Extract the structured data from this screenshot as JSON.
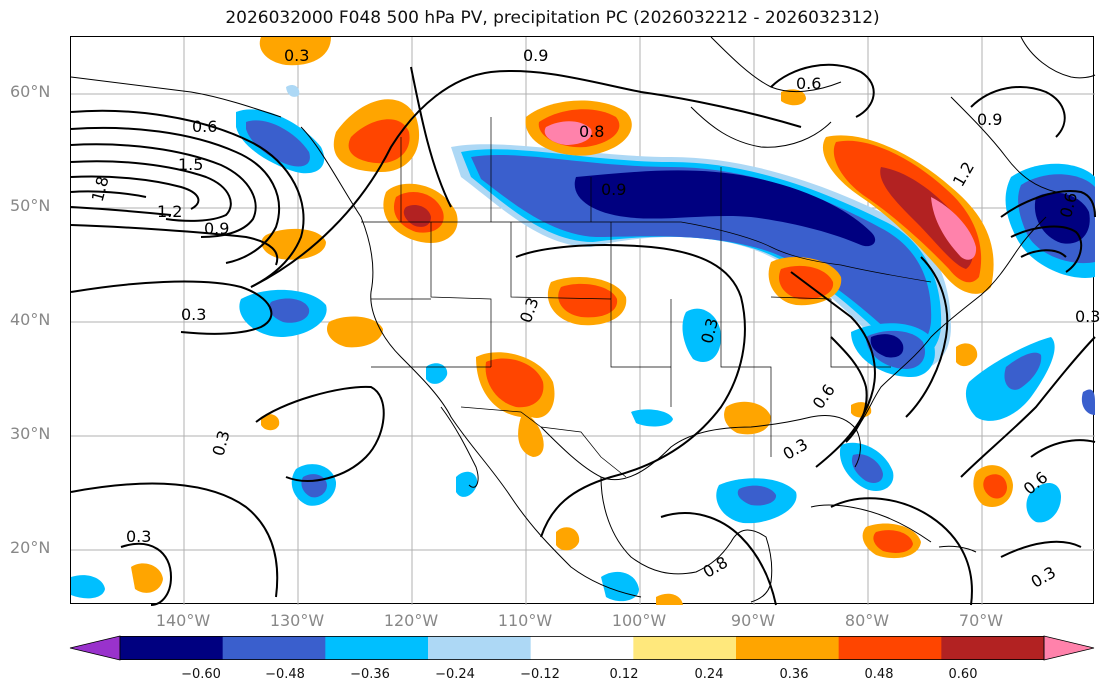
{
  "title": "2026032000 F048 500 hPa PV, precipitation PC (2026032212 - 2026032312)",
  "lat_labels": [
    "60°N",
    "50°N",
    "40°N",
    "30°N",
    "20°N"
  ],
  "lon_labels": [
    "140°W",
    "130°W",
    "120°W",
    "110°W",
    "100°W",
    "90°W",
    "80°W",
    "70°W"
  ],
  "colorbar": {
    "labels": [
      "−0.60",
      "−0.48",
      "−0.36",
      "−0.24",
      "−0.12",
      "0.12",
      "0.24",
      "0.36",
      "0.48",
      "0.60"
    ],
    "colors": [
      "#9932cc",
      "#000080",
      "#3a5fcd",
      "#00bfff",
      "#add8f5",
      "#ffffff",
      "#ffe87c",
      "#ffa500",
      "#ff4500",
      "#b22222",
      "#ff82ab"
    ]
  },
  "contour_labels": [
    "0.3",
    "0.9",
    "0.6",
    "0.6",
    "1.5",
    "1.8",
    "1.2",
    "0.9",
    "0.3",
    "0.3",
    "0.3",
    "0.3",
    "0.6",
    "0.3",
    "0.6",
    "0.9",
    "0.9",
    "1.2",
    "0.3",
    "0.6",
    "0.3",
    "0.3",
    "0.8",
    "0.8"
  ],
  "colors": {
    "grid": "#b0b0b0",
    "coast": "#000000",
    "contour": "#000000",
    "tick_label": "#888888"
  }
}
